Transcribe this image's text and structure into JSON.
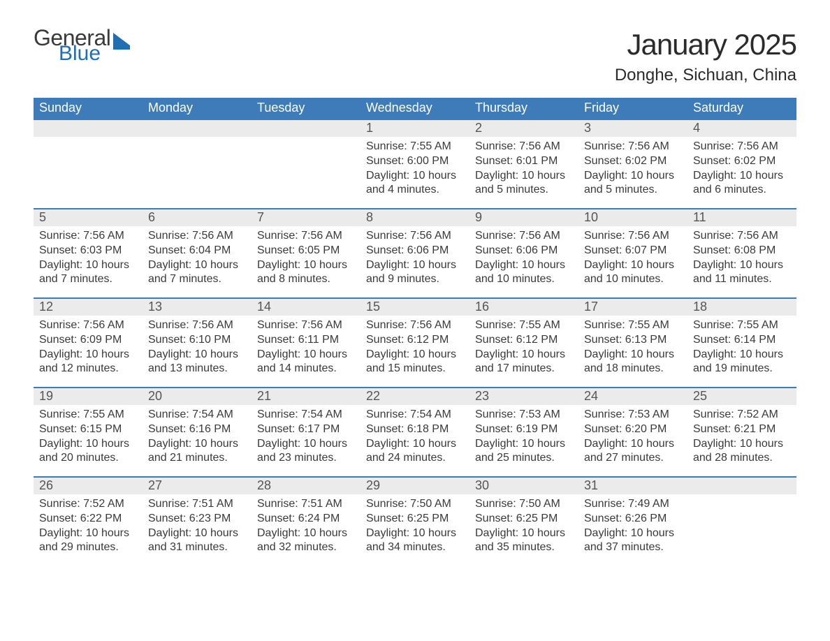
{
  "brand": {
    "word1": "General",
    "word2": "Blue"
  },
  "header": {
    "month_title": "January 2025",
    "location": "Donghe, Sichuan, China"
  },
  "style": {
    "header_bg": "#3d7cb8",
    "header_text": "#ffffff",
    "daynum_bg": "#ebebeb",
    "daynum_border": "#3d7cb8",
    "body_text": "#3a3a3a",
    "brand_blue": "#1f6fb2",
    "month_title_fontsize": 42,
    "sub_title_fontsize": 24,
    "th_fontsize": 18,
    "cell_fontsize": 16
  },
  "day_headers": [
    "Sunday",
    "Monday",
    "Tuesday",
    "Wednesday",
    "Thursday",
    "Friday",
    "Saturday"
  ],
  "weeks": [
    [
      null,
      null,
      null,
      {
        "n": "1",
        "sr": "7:55 AM",
        "ss": "6:00 PM",
        "dl": "10 hours and 4 minutes."
      },
      {
        "n": "2",
        "sr": "7:56 AM",
        "ss": "6:01 PM",
        "dl": "10 hours and 5 minutes."
      },
      {
        "n": "3",
        "sr": "7:56 AM",
        "ss": "6:02 PM",
        "dl": "10 hours and 5 minutes."
      },
      {
        "n": "4",
        "sr": "7:56 AM",
        "ss": "6:02 PM",
        "dl": "10 hours and 6 minutes."
      }
    ],
    [
      {
        "n": "5",
        "sr": "7:56 AM",
        "ss": "6:03 PM",
        "dl": "10 hours and 7 minutes."
      },
      {
        "n": "6",
        "sr": "7:56 AM",
        "ss": "6:04 PM",
        "dl": "10 hours and 7 minutes."
      },
      {
        "n": "7",
        "sr": "7:56 AM",
        "ss": "6:05 PM",
        "dl": "10 hours and 8 minutes."
      },
      {
        "n": "8",
        "sr": "7:56 AM",
        "ss": "6:06 PM",
        "dl": "10 hours and 9 minutes."
      },
      {
        "n": "9",
        "sr": "7:56 AM",
        "ss": "6:06 PM",
        "dl": "10 hours and 10 minutes."
      },
      {
        "n": "10",
        "sr": "7:56 AM",
        "ss": "6:07 PM",
        "dl": "10 hours and 10 minutes."
      },
      {
        "n": "11",
        "sr": "7:56 AM",
        "ss": "6:08 PM",
        "dl": "10 hours and 11 minutes."
      }
    ],
    [
      {
        "n": "12",
        "sr": "7:56 AM",
        "ss": "6:09 PM",
        "dl": "10 hours and 12 minutes."
      },
      {
        "n": "13",
        "sr": "7:56 AM",
        "ss": "6:10 PM",
        "dl": "10 hours and 13 minutes."
      },
      {
        "n": "14",
        "sr": "7:56 AM",
        "ss": "6:11 PM",
        "dl": "10 hours and 14 minutes."
      },
      {
        "n": "15",
        "sr": "7:56 AM",
        "ss": "6:12 PM",
        "dl": "10 hours and 15 minutes."
      },
      {
        "n": "16",
        "sr": "7:55 AM",
        "ss": "6:12 PM",
        "dl": "10 hours and 17 minutes."
      },
      {
        "n": "17",
        "sr": "7:55 AM",
        "ss": "6:13 PM",
        "dl": "10 hours and 18 minutes."
      },
      {
        "n": "18",
        "sr": "7:55 AM",
        "ss": "6:14 PM",
        "dl": "10 hours and 19 minutes."
      }
    ],
    [
      {
        "n": "19",
        "sr": "7:55 AM",
        "ss": "6:15 PM",
        "dl": "10 hours and 20 minutes."
      },
      {
        "n": "20",
        "sr": "7:54 AM",
        "ss": "6:16 PM",
        "dl": "10 hours and 21 minutes."
      },
      {
        "n": "21",
        "sr": "7:54 AM",
        "ss": "6:17 PM",
        "dl": "10 hours and 23 minutes."
      },
      {
        "n": "22",
        "sr": "7:54 AM",
        "ss": "6:18 PM",
        "dl": "10 hours and 24 minutes."
      },
      {
        "n": "23",
        "sr": "7:53 AM",
        "ss": "6:19 PM",
        "dl": "10 hours and 25 minutes."
      },
      {
        "n": "24",
        "sr": "7:53 AM",
        "ss": "6:20 PM",
        "dl": "10 hours and 27 minutes."
      },
      {
        "n": "25",
        "sr": "7:52 AM",
        "ss": "6:21 PM",
        "dl": "10 hours and 28 minutes."
      }
    ],
    [
      {
        "n": "26",
        "sr": "7:52 AM",
        "ss": "6:22 PM",
        "dl": "10 hours and 29 minutes."
      },
      {
        "n": "27",
        "sr": "7:51 AM",
        "ss": "6:23 PM",
        "dl": "10 hours and 31 minutes."
      },
      {
        "n": "28",
        "sr": "7:51 AM",
        "ss": "6:24 PM",
        "dl": "10 hours and 32 minutes."
      },
      {
        "n": "29",
        "sr": "7:50 AM",
        "ss": "6:25 PM",
        "dl": "10 hours and 34 minutes."
      },
      {
        "n": "30",
        "sr": "7:50 AM",
        "ss": "6:25 PM",
        "dl": "10 hours and 35 minutes."
      },
      {
        "n": "31",
        "sr": "7:49 AM",
        "ss": "6:26 PM",
        "dl": "10 hours and 37 minutes."
      },
      null
    ]
  ],
  "labels": {
    "sunrise": "Sunrise: ",
    "sunset": "Sunset: ",
    "daylight": "Daylight: "
  }
}
